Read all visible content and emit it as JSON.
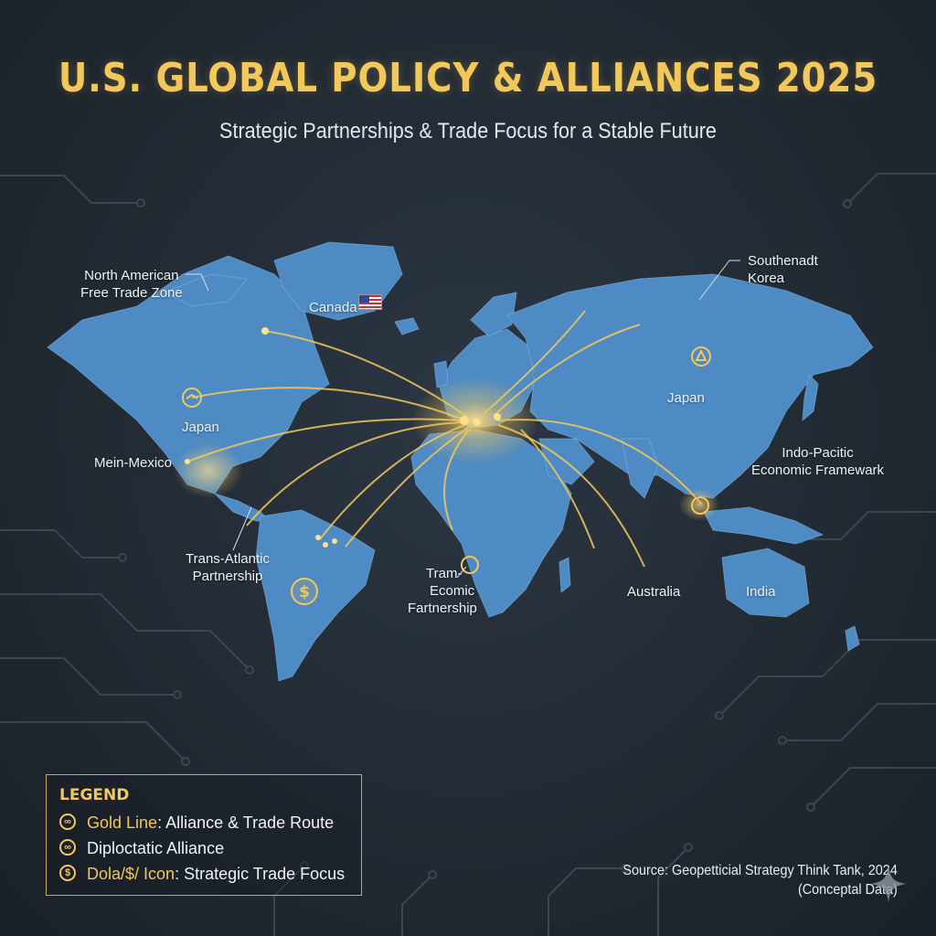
{
  "title": "U.S. GLOBAL POLICY & ALLIANCES 2025",
  "subtitle": "Strategic Partnerships & Trade Focus for a Stable Future",
  "colors": {
    "background": "#222a33",
    "land": "#4e8ac4",
    "gold": "#f2c85b"
  },
  "map_labels": {
    "north_american_ftz": "North American\nFree Trade Zone",
    "canada": "Canada",
    "japan_na": "Japan",
    "mein_mexico": "Mein-Mexico",
    "trans_atlantic": "Trans-Atlantic\nPartnership",
    "tram_economic": "Tram-\nEcomic\nFartnership",
    "australia": "Australia",
    "india": "India",
    "japan_asia": "Japan",
    "indo_pacific": "Indo-Pacitic\nEconomic Framewark",
    "southenadt_korea": "Southenadt\nKorea"
  },
  "legend": {
    "title": "LEGEND",
    "items": [
      {
        "icon": "handshake-icon",
        "key": "Gold Line",
        "text": ": Alliance & Trade Route"
      },
      {
        "icon": "handshake-icon",
        "key": "",
        "text": "Diploctatic Alliance"
      },
      {
        "icon": "dollar-icon",
        "key": "Dola/$/ Icon",
        "text": ": Strategic Trade Focus"
      }
    ]
  },
  "source": "Source: Geopetticial Strategy Think Tank, 2024\n(Conceptal Data)"
}
